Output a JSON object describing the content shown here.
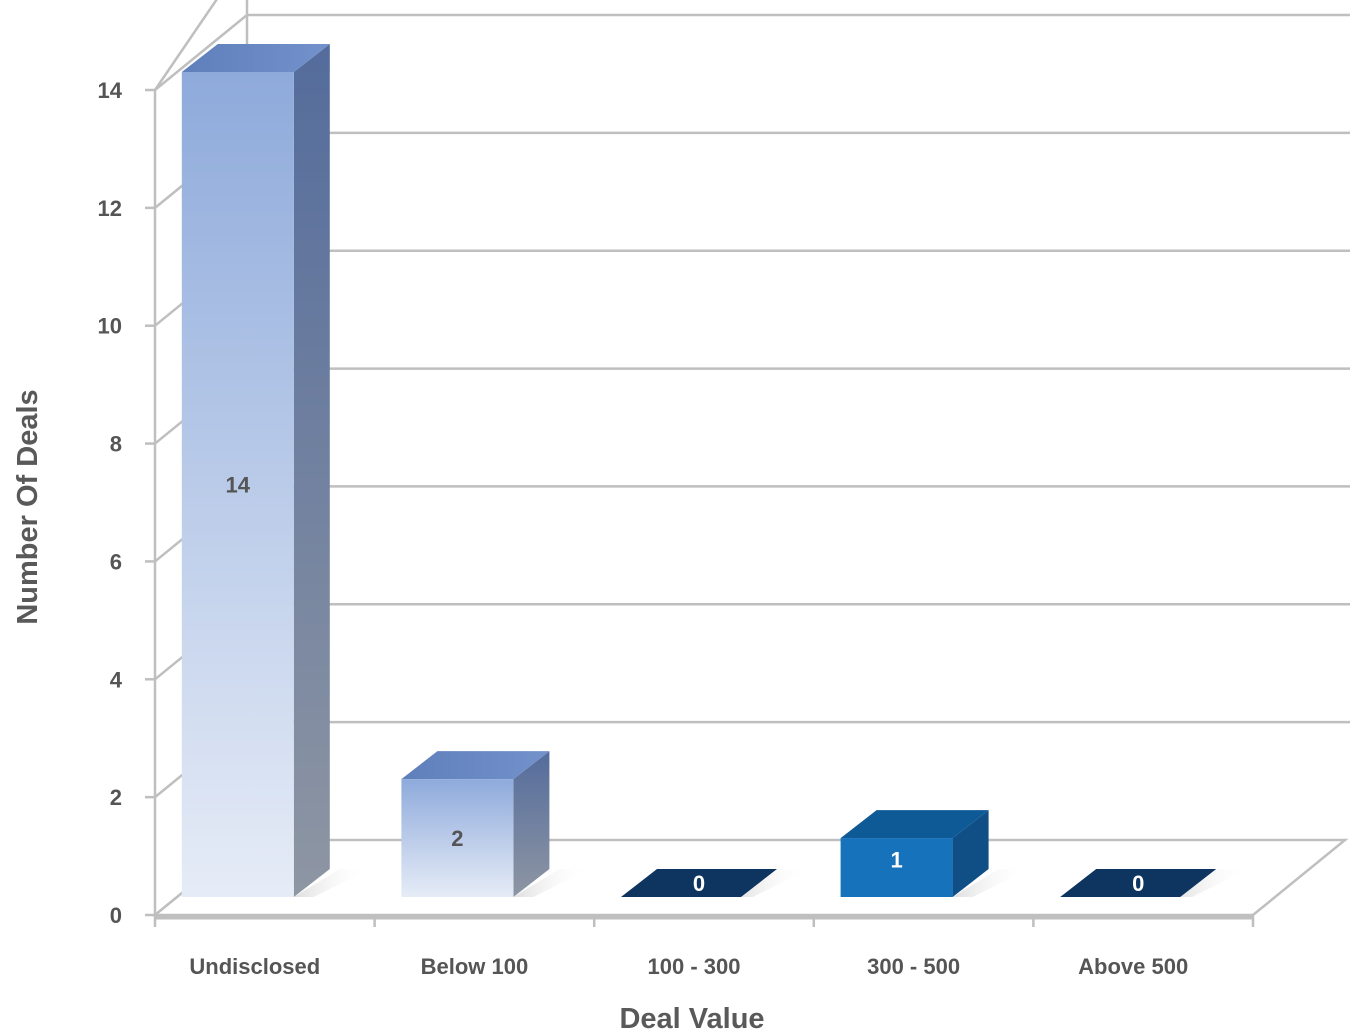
{
  "chart_data": {
    "type": "bar",
    "style": "3d-column",
    "categories": [
      "Undisclosed",
      "Below 100",
      "100 - 300",
      "300 - 500",
      "Above 500"
    ],
    "values": [
      14,
      2,
      0,
      1,
      0
    ],
    "data_labels": [
      "14",
      "2",
      "0",
      "1",
      "0"
    ],
    "xlabel": "Deal Value",
    "ylabel": "Number Of Deals",
    "ylim": [
      0,
      14
    ],
    "yticks": [
      0,
      2,
      4,
      6,
      8,
      10,
      12,
      14
    ],
    "grid": true,
    "legend": "none",
    "colors": {
      "undisclosed_top": "#8eaadb",
      "undisclosed_bottom": "#e6ecf7",
      "below100_top": "#97b1de",
      "below100_bottom": "#e8eef8",
      "mid_blue": "#1572bb",
      "dark_navy": "#0d3560",
      "grid": "#bfbfbf"
    }
  }
}
